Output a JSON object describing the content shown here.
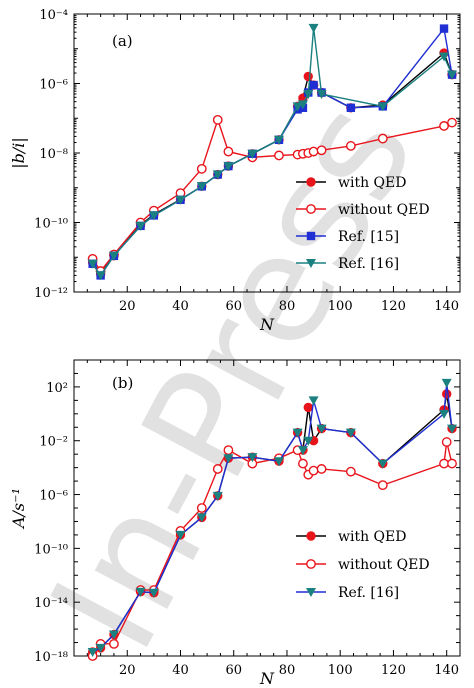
{
  "watermark": "In-Press",
  "chart_data": [
    {
      "id": "a",
      "type": "line",
      "panel_label": "(a)",
      "xlabel": "N",
      "ylabel": "|b/i|",
      "xlim": [
        0,
        145
      ],
      "ylim_log10": [
        -12,
        -4
      ],
      "y_scale": "log",
      "x_ticks": [
        20,
        40,
        60,
        80,
        100,
        120,
        140
      ],
      "y_ticks_log10": [
        -12,
        -10,
        -8,
        -6,
        -4
      ],
      "legend": "lower-right",
      "series": [
        {
          "name": "with QED",
          "color": "#000000",
          "marker_color": "#e8141b",
          "marker": "circle-filled",
          "x": [
            7,
            10,
            15,
            25,
            30,
            40,
            48,
            54,
            58,
            67,
            77,
            84,
            86,
            88,
            90,
            93,
            104,
            116,
            139,
            142
          ],
          "y": [
            7e-12,
            3.3e-12,
            1.1e-11,
            8.5e-11,
            1.7e-10,
            4.6e-10,
            1.1e-09,
            2.4e-09,
            4.2e-09,
            9.5e-09,
            2.4e-08,
            2.2e-07,
            3.8e-07,
            1.6e-06,
            9e-07,
            5.5e-07,
            2e-07,
            2.4e-07,
            7.5e-06,
            1.8e-06
          ]
        },
        {
          "name": "without QED",
          "color": "#e8141b",
          "marker_color": "#e8141b",
          "marker": "circle-open",
          "x": [
            7,
            10,
            15,
            25,
            30,
            40,
            48,
            54,
            58,
            67,
            77,
            84,
            86,
            88,
            90,
            93,
            104,
            116,
            139,
            142
          ],
          "y": [
            9e-12,
            4e-12,
            1.2e-11,
            1e-10,
            2.2e-10,
            7e-10,
            3.5e-09,
            9e-08,
            1.1e-08,
            7.5e-09,
            8.5e-09,
            9e-09,
            9.5e-09,
            1e-08,
            1.1e-08,
            1.2e-08,
            1.6e-08,
            2.6e-08,
            6e-08,
            7.5e-08
          ]
        },
        {
          "name": "Ref. [15]",
          "color": "#1f2fd4",
          "marker_color": "#1f2fd4",
          "marker": "square",
          "x": [
            7,
            10,
            15,
            25,
            30,
            40,
            48,
            54,
            58,
            67,
            77,
            84,
            86,
            88,
            90,
            93,
            104,
            116,
            139,
            142
          ],
          "y": [
            6.5e-12,
            3e-12,
            1.1e-11,
            8e-11,
            1.6e-10,
            4.5e-10,
            1.1e-09,
            2.4e-09,
            4.2e-09,
            9.5e-09,
            2.4e-08,
            1.8e-07,
            2e-07,
            5.5e-07,
            9e-07,
            5.5e-07,
            2e-07,
            2.2e-07,
            3.8e-05,
            1.8e-06
          ]
        },
        {
          "name": "Ref. [16]",
          "color": "#1a8080",
          "marker_color": "#1a8080",
          "marker": "triangle-down",
          "x": [
            7,
            10,
            15,
            25,
            30,
            40,
            48,
            54,
            58,
            67,
            77,
            84,
            86,
            88,
            90,
            93,
            116,
            139,
            142
          ],
          "y": [
            6.5e-12,
            3e-12,
            1.1e-11,
            8e-11,
            1.6e-10,
            4.5e-10,
            1.1e-09,
            2.4e-09,
            4.2e-09,
            9.5e-09,
            2.4e-08,
            2.2e-07,
            2.5e-07,
            5e-07,
            4e-05,
            5e-07,
            2.2e-07,
            6e-06,
            1.8e-06
          ]
        }
      ]
    },
    {
      "id": "b",
      "type": "line",
      "panel_label": "(b)",
      "xlabel": "N",
      "ylabel": "A/s⁻¹",
      "xlim": [
        0,
        145
      ],
      "ylim_log10": [
        -18,
        4
      ],
      "y_scale": "log",
      "x_ticks": [
        20,
        40,
        60,
        80,
        100,
        120,
        140
      ],
      "y_ticks_log10": [
        -18,
        -14,
        -10,
        -6,
        -2,
        2
      ],
      "legend": "lower-right",
      "series": [
        {
          "name": "with QED",
          "color": "#000000",
          "marker_color": "#e8141b",
          "marker": "circle-filled",
          "x": [
            7,
            10,
            15,
            25,
            30,
            40,
            48,
            54,
            58,
            67,
            77,
            84,
            86,
            88,
            90,
            93,
            104,
            116,
            139,
            140,
            142
          ],
          "y": [
            2e-18,
            4e-18,
            4e-17,
            6e-14,
            5e-14,
            1e-09,
            2e-08,
            8e-07,
            0.0005,
            0.0006,
            0.0003,
            0.04,
            0.002,
            3,
            0.01,
            0.08,
            0.04,
            0.0002,
            2,
            30,
            0.08
          ]
        },
        {
          "name": "without QED",
          "color": "#e8141b",
          "marker_color": "#e8141b",
          "marker": "circle-open",
          "x": [
            7,
            10,
            15,
            25,
            30,
            40,
            48,
            54,
            58,
            67,
            77,
            84,
            86,
            88,
            90,
            93,
            104,
            116,
            139,
            140,
            142
          ],
          "y": [
            1e-18,
            8e-18,
            8e-18,
            8e-14,
            8e-14,
            2e-09,
            1e-07,
            8e-05,
            0.002,
            0.0002,
            0.0005,
            0.002,
            0.0002,
            3e-05,
            6e-05,
            8e-05,
            5e-05,
            5e-06,
            0.0002,
            0.008,
            0.0002
          ]
        },
        {
          "name": "Ref. [16]",
          "color": "#1f2fd4",
          "marker_color": "#1a8080",
          "marker": "triangle-down",
          "x": [
            7,
            10,
            15,
            25,
            30,
            40,
            48,
            54,
            58,
            67,
            77,
            84,
            86,
            88,
            90,
            93,
            104,
            116,
            139,
            140,
            142
          ],
          "y": [
            2e-18,
            4e-18,
            4e-17,
            6e-14,
            5e-14,
            1e-09,
            2e-08,
            8e-07,
            0.0005,
            0.0006,
            0.0003,
            0.04,
            0.002,
            0.01,
            10,
            0.08,
            0.04,
            0.0002,
            1,
            200,
            0.08
          ]
        }
      ]
    }
  ]
}
